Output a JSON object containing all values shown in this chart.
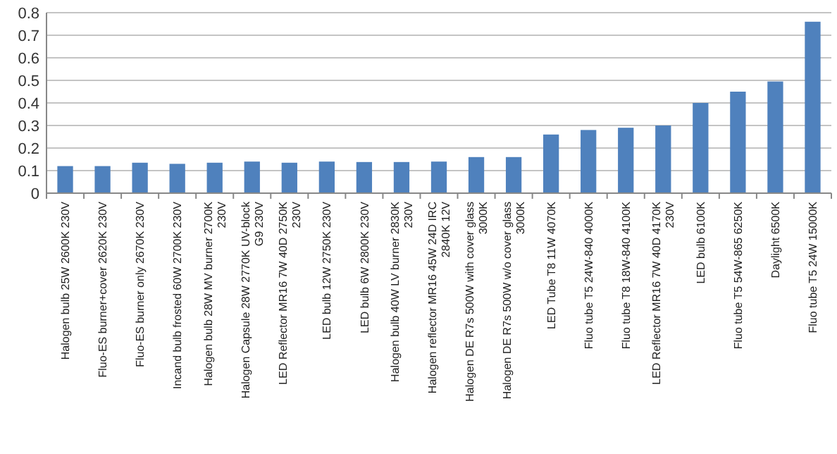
{
  "chart_data": {
    "type": "bar",
    "categories": [
      "Halogen bulb 25W 2600K 230V",
      "Fluo-ES burner+cover 2620K 230V",
      "Fluo-ES burner only 2670K 230V",
      "Incand bulb frosted 60W 2700K 230V",
      "Halogen bulb 28W MV burner 2700K\n230V",
      "Halogen Capsule 28W 2770K UV-block\nG9 230V",
      "LED Reflector MR16 7W 40D 2750K\n230V",
      "LED bulb 12W 2750K 230V",
      "LED bulb 6W 2800K 230V",
      "Halogen bulb 40W LV burner 2830K\n230V",
      "Halogen reflector MR16 45W 24D IRC\n2840K 12V",
      "Halogen DE R7s 500W with cover glass\n3000K",
      "Halogen DE R7s 500W w/o cover glass\n3000K",
      "LED Tube T8 11W  4070K",
      "Fluo tube T5 24W-840 4000K",
      "Fluo tube T8 18W-840 4100K",
      "LED Reflector MR16 7W 40D 4170K\n230V",
      "LED bulb 6100K",
      "Fluo tube T5 54W-865 6250K",
      "Daylight 6500K",
      "Fluo tube T5 24W  15000K"
    ],
    "values": [
      0.12,
      0.12,
      0.135,
      0.13,
      0.135,
      0.14,
      0.135,
      0.14,
      0.138,
      0.138,
      0.14,
      0.16,
      0.16,
      0.26,
      0.28,
      0.29,
      0.3,
      0.4,
      0.45,
      0.495,
      0.76
    ],
    "color": "#4f81bd",
    "ylim": [
      0,
      0.8
    ],
    "yticks": [
      0,
      0.1,
      0.2,
      0.3,
      0.4,
      0.5,
      0.6,
      0.7,
      0.8
    ],
    "grid": "y"
  }
}
